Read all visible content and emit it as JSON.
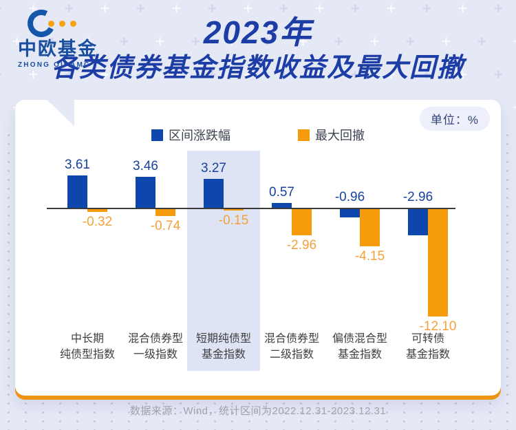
{
  "brand": {
    "name_cn": "中欧基金",
    "name_en": "ZHONG OU AMC",
    "logo_blue": "#1456a8",
    "logo_orange": "#f5a211"
  },
  "title": {
    "line1": "2023年",
    "line2": "各类债券基金指数收益及最大回撤",
    "color": "#1d3da6"
  },
  "card": {
    "unit_badge": "单位：%"
  },
  "legend": [
    {
      "label": "区间涨跌幅",
      "color": "#0d47ad"
    },
    {
      "label": "最大回撤",
      "color": "#f69c0c"
    }
  ],
  "chart_data": {
    "type": "bar",
    "title": "2023年各类债券基金指数收益及最大回撤",
    "unit": "%",
    "categories": [
      [
        "中长期",
        "纯债型指数"
      ],
      [
        "混合债券型",
        "一级指数"
      ],
      [
        "短期纯债型",
        "基金指数"
      ],
      [
        "混合债券型",
        "二级指数"
      ],
      [
        "偏债混合型",
        "基金指数"
      ],
      [
        "可转债",
        "基金指数"
      ]
    ],
    "series": [
      {
        "name": "区间涨跌幅",
        "color": "#0d47ad",
        "values": [
          3.61,
          3.46,
          3.27,
          0.57,
          -0.96,
          -2.96
        ]
      },
      {
        "name": "最大回撤",
        "color": "#f69c0c",
        "values": [
          -0.32,
          -0.74,
          -0.15,
          -2.96,
          -4.15,
          -12.1
        ]
      }
    ],
    "highlighted_category_index": 2,
    "baseline": 0,
    "ylim": [
      -13,
      4.2
    ],
    "grid": false,
    "legend_position": "top"
  },
  "footer": {
    "source_note": "数据来源：Wind，统计区间为2022.12.31-2023.12.31"
  }
}
